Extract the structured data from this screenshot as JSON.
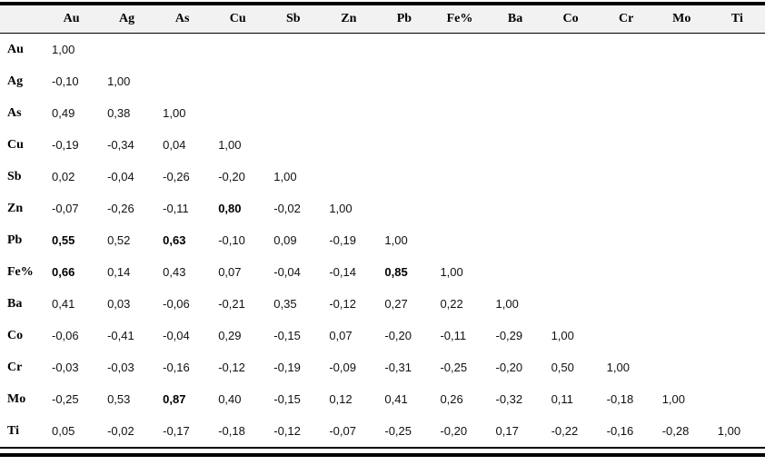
{
  "styles": {
    "rule_color": "#000000",
    "header_background": "#f2f2f2",
    "text_color": "#111111"
  },
  "chart_data": {
    "type": "table",
    "description": "Lower-triangular correlation matrix of elements",
    "corner_label": "",
    "columns": [
      "Au",
      "Ag",
      "As",
      "Cu",
      "Sb",
      "Zn",
      "Pb",
      "Fe%",
      "Ba",
      "Co",
      "Cr",
      "Mo",
      "Ti"
    ],
    "rows": [
      {
        "label": "Au",
        "values": [
          "1,00"
        ],
        "bold": []
      },
      {
        "label": "Ag",
        "values": [
          "-0,10",
          "1,00"
        ],
        "bold": []
      },
      {
        "label": "As",
        "values": [
          "0,49",
          "0,38",
          "1,00"
        ],
        "bold": []
      },
      {
        "label": "Cu",
        "values": [
          "-0,19",
          "-0,34",
          "0,04",
          "1,00"
        ],
        "bold": []
      },
      {
        "label": "Sb",
        "values": [
          "0,02",
          "-0,04",
          "-0,26",
          "-0,20",
          "1,00"
        ],
        "bold": []
      },
      {
        "label": "Zn",
        "values": [
          "-0,07",
          "-0,26",
          "-0,11",
          "0,80",
          "-0,02",
          "1,00"
        ],
        "bold": [
          3
        ]
      },
      {
        "label": "Pb",
        "values": [
          "0,55",
          "0,52",
          "0,63",
          "-0,10",
          "0,09",
          "-0,19",
          "1,00"
        ],
        "bold": [
          0,
          2
        ]
      },
      {
        "label": "Fe%",
        "values": [
          "0,66",
          "0,14",
          "0,43",
          "0,07",
          "-0,04",
          "-0,14",
          "0,85",
          "1,00"
        ],
        "bold": [
          0,
          6
        ]
      },
      {
        "label": "Ba",
        "values": [
          "0,41",
          "0,03",
          "-0,06",
          "-0,21",
          "0,35",
          "-0,12",
          "0,27",
          "0,22",
          "1,00"
        ],
        "bold": []
      },
      {
        "label": "Co",
        "values": [
          "-0,06",
          "-0,41",
          "-0,04",
          "0,29",
          "-0,15",
          "0,07",
          "-0,20",
          "-0,11",
          "-0,29",
          "1,00"
        ],
        "bold": []
      },
      {
        "label": "Cr",
        "values": [
          "-0,03",
          "-0,03",
          "-0,16",
          "-0,12",
          "-0,19",
          "-0,09",
          "-0,31",
          "-0,25",
          "-0,20",
          "0,50",
          "1,00"
        ],
        "bold": []
      },
      {
        "label": "Mo",
        "values": [
          "-0,25",
          "0,53",
          "0,87",
          "0,40",
          "-0,15",
          "0,12",
          "0,41",
          "0,26",
          "-0,32",
          "0,11",
          "-0,18",
          "1,00"
        ],
        "bold": [
          2
        ]
      },
      {
        "label": "Ti",
        "values": [
          "0,05",
          "-0,02",
          "-0,17",
          "-0,18",
          "-0,12",
          "-0,07",
          "-0,25",
          "-0,20",
          "0,17",
          "-0,22",
          "-0,16",
          "-0,28",
          "1,00"
        ],
        "bold": []
      }
    ]
  }
}
